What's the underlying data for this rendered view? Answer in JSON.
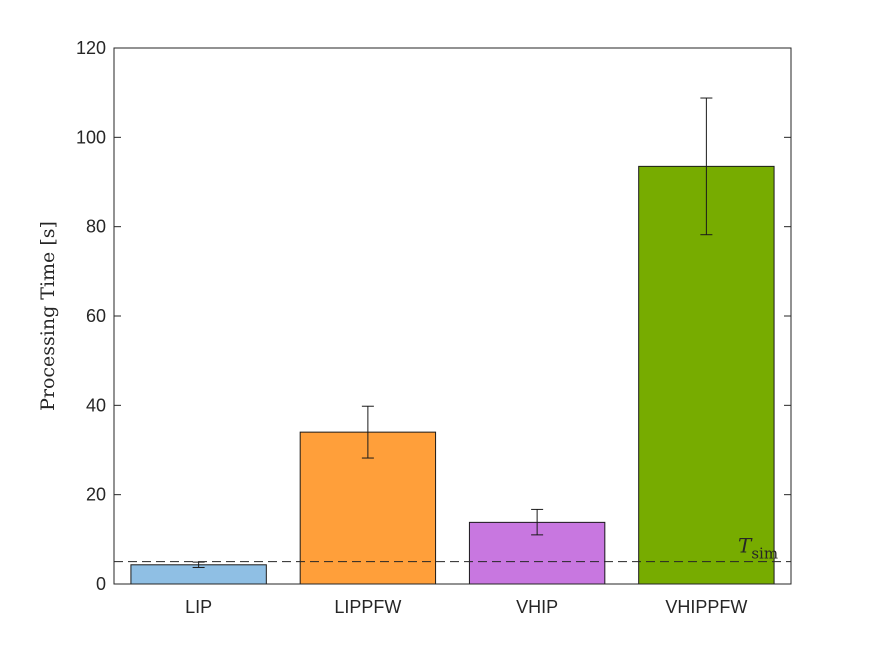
{
  "chart_data": {
    "type": "bar",
    "categories": [
      "LIP",
      "LIPPFW",
      "VHIP",
      "VHIPPFW"
    ],
    "values": [
      4.3,
      34.0,
      13.8,
      93.5
    ],
    "errors": [
      {
        "low": 3.7,
        "high": 4.9
      },
      {
        "low": 28.2,
        "high": 39.8
      },
      {
        "low": 11.0,
        "high": 16.7
      },
      {
        "low": 78.2,
        "high": 108.8
      }
    ],
    "colors": [
      "#8fbfe4",
      "#ff9f3a",
      "#c877e0",
      "#77ac00"
    ],
    "ylabel": "Processing Time [s]",
    "ylim": [
      0,
      120
    ],
    "yticks": [
      0,
      20,
      40,
      60,
      80,
      100,
      120
    ],
    "reference_line": {
      "value": 5,
      "label": "T",
      "label_sub": "sim",
      "style": "dashed"
    },
    "grid": false
  }
}
